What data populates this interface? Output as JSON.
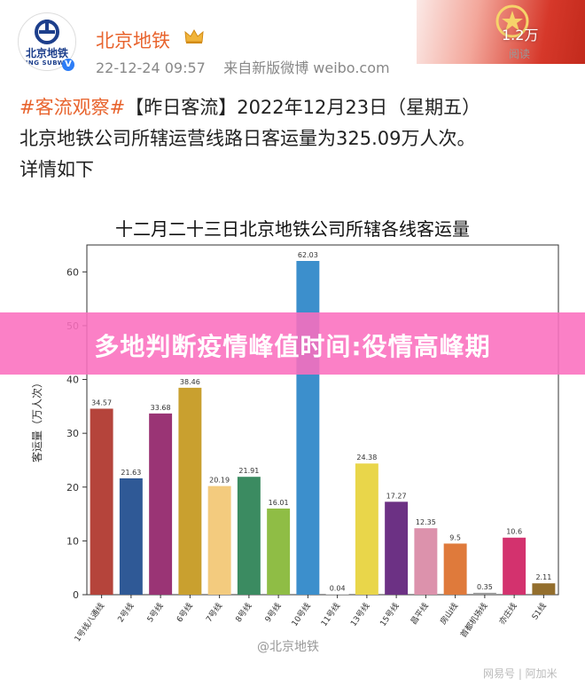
{
  "post": {
    "avatar_name": "北京地铁",
    "avatar_subtext": "IJING SUBWAY",
    "username": "北京地铁",
    "timestamp": "22-12-24 09:57",
    "source": "来自新版微博 weibo.com",
    "reads_count": "1.2万",
    "reads_label": "阅读",
    "hashtag": "#客流观察#",
    "text_line1_rest": "【昨日客流】2022年12月23日（星期五）",
    "text_line2": "北京地铁公司所辖运营线路日客运量为325.09万人次。",
    "text_line3": "详情如下"
  },
  "overlay_title": "多地判断疫情峰值时间:役情高峰期",
  "watermark": "@北京地铁",
  "footer_mark": "网易号 | 阿加米",
  "colors": {
    "accent_orange": "#e8642e",
    "overlay_pink": "#fa6ebe"
  },
  "chart_data": {
    "type": "bar",
    "title": "十二月二十三日北京地铁公司所辖各线客运量",
    "ylabel": "客运量（万人次）",
    "xlabel": "",
    "ylim": [
      0,
      65
    ],
    "yticks": [
      0,
      10,
      20,
      30,
      40,
      50,
      60
    ],
    "grid": false,
    "categories": [
      "1号线八通线",
      "2号线",
      "5号线",
      "6号线",
      "7号线",
      "8号线",
      "9号线",
      "10号线",
      "11号线",
      "13号线",
      "15号线",
      "昌平线",
      "房山线",
      "首都机场线",
      "亦庄线",
      "S1线"
    ],
    "values": [
      34.57,
      21.63,
      33.68,
      38.46,
      20.19,
      21.91,
      16.01,
      62.03,
      0.04,
      24.38,
      17.27,
      12.35,
      9.5,
      0.35,
      10.6,
      2.11
    ],
    "value_labels": [
      "34.57",
      "21.63",
      "33.68",
      "38.46",
      "20.19",
      "21.91",
      "16.01",
      "62.03",
      "0.04",
      "24.38",
      "17.27",
      "12.35",
      "9.5",
      "0.35",
      "10.6",
      "2.11"
    ],
    "bar_colors": [
      "#b5443b",
      "#2f5996",
      "#9a3475",
      "#c9a02f",
      "#f3cb7e",
      "#3b8b61",
      "#8fbd45",
      "#3c8fcc",
      "#cccccc",
      "#e9d64a",
      "#6c3184",
      "#dc92ac",
      "#df7a3b",
      "#999999",
      "#d3326e",
      "#936e2d"
    ]
  }
}
